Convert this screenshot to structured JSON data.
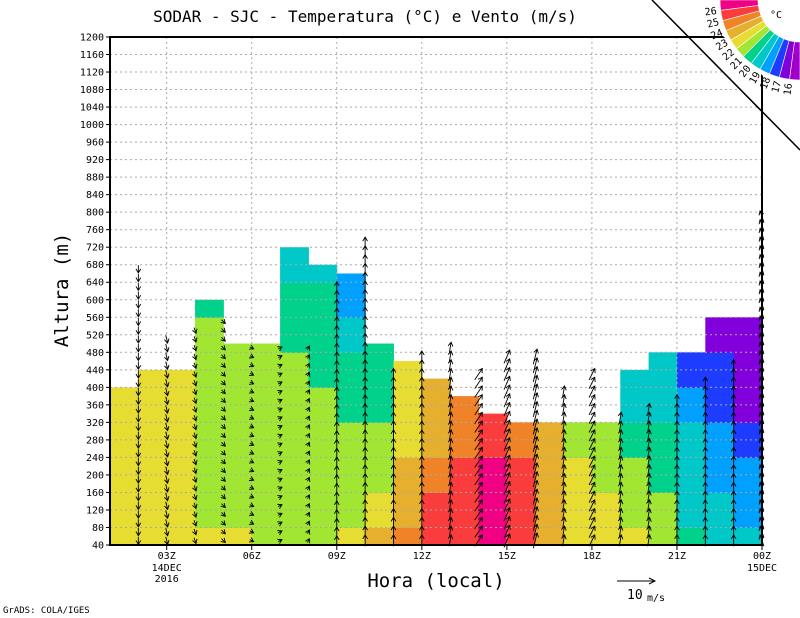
{
  "chart_data": {
    "type": "contour+vector",
    "title": "SODAR - SJC - Temperatura (°C) e Vento (m/s)",
    "xlabel": "Hora (local)",
    "ylabel": "Altura (m)",
    "footer": "GrADS: COLA/IGES",
    "xlim_hours": [
      1,
      24
    ],
    "ylim": [
      40,
      1200
    ],
    "yticks": [
      40,
      80,
      120,
      160,
      200,
      240,
      280,
      320,
      360,
      400,
      440,
      480,
      520,
      560,
      600,
      640,
      680,
      720,
      760,
      800,
      840,
      880,
      920,
      960,
      1000,
      1040,
      1080,
      1120,
      1160,
      1200
    ],
    "xticks": [
      {
        "hour": 3,
        "label": "03Z",
        "sub1": "14DEC",
        "sub2": "2016"
      },
      {
        "hour": 6,
        "label": "06Z"
      },
      {
        "hour": 9,
        "label": "09Z"
      },
      {
        "hour": 12,
        "label": "12Z"
      },
      {
        "hour": 15,
        "label": "15Z"
      },
      {
        "hour": 18,
        "label": "18Z"
      },
      {
        "hour": 21,
        "label": "21Z"
      },
      {
        "hour": 24,
        "label": "00Z",
        "sub1": "15DEC"
      }
    ],
    "grid": true,
    "colorbar": {
      "unit": "°C",
      "levels": [
        26,
        25,
        24,
        23,
        22,
        21,
        20,
        19,
        18,
        17,
        16
      ],
      "colors": [
        "#f00082",
        "#fa3c3c",
        "#f08228",
        "#e6af2d",
        "#e6dc32",
        "#a0e632",
        "#00d28c",
        "#00c8c8",
        "#00a0ff",
        "#1e3cff",
        "#8200dc",
        "#a000c8"
      ]
    },
    "temperature_levels_m": [
      40,
      120,
      200,
      280,
      360,
      440,
      520,
      600,
      680
    ],
    "temperature_columns": [
      {
        "hour": 1,
        "top": 400,
        "t": [
          22.5,
          22.5,
          22.5,
          22.5,
          22.5
        ]
      },
      {
        "hour": 2,
        "top": 440,
        "t": [
          22.5,
          22.5,
          22.5,
          22.5,
          22.5,
          22.5
        ]
      },
      {
        "hour": 3,
        "top": 440,
        "t": [
          22.5,
          22.5,
          22.5,
          22.5,
          22.5,
          22.5
        ]
      },
      {
        "hour": 4,
        "top": 600,
        "t": [
          22.5,
          21.5,
          21.5,
          21.5,
          21.5,
          21.5,
          21.5,
          20.5
        ]
      },
      {
        "hour": 5,
        "top": 500,
        "t": [
          22.5,
          21.5,
          21.5,
          21.5,
          21.5,
          21.5,
          21.5
        ]
      },
      {
        "hour": 6,
        "top": 500,
        "t": [
          21.5,
          21.5,
          21.5,
          21.5,
          21.5,
          21.5,
          21.5
        ]
      },
      {
        "hour": 7,
        "top": 720,
        "t": [
          21.5,
          21.5,
          21.5,
          21.5,
          21.5,
          21.5,
          20.5,
          20.5,
          19.5
        ]
      },
      {
        "hour": 8,
        "top": 680,
        "t": [
          21.5,
          21.5,
          21.5,
          21.5,
          21.5,
          20.5,
          20.5,
          20.5,
          19.5
        ]
      },
      {
        "hour": 9,
        "top": 660,
        "t": [
          22.5,
          21.5,
          21.5,
          21.5,
          20.5,
          20.5,
          19.5,
          18.5,
          18.5
        ]
      },
      {
        "hour": 10,
        "top": 500,
        "t": [
          23.5,
          22.5,
          21.5,
          21.5,
          20.5,
          20.5,
          20.5
        ]
      },
      {
        "hour": 11,
        "top": 460,
        "t": [
          24.5,
          23.5,
          23.5,
          22.5,
          22.5,
          22.5
        ]
      },
      {
        "hour": 12,
        "top": 420,
        "t": [
          25.5,
          25.5,
          24.5,
          23.5,
          23.5,
          23.5
        ]
      },
      {
        "hour": 13,
        "top": 380,
        "t": [
          25.5,
          25.5,
          25.5,
          24.5,
          24.5
        ]
      },
      {
        "hour": 14,
        "top": 340,
        "t": [
          26.5,
          26.5,
          26.5,
          25.5,
          25.5
        ]
      },
      {
        "hour": 15,
        "top": 320,
        "t": [
          25.5,
          25.5,
          25.5,
          24.5
        ]
      },
      {
        "hour": 16,
        "top": 320,
        "t": [
          23.5,
          23.5,
          23.5,
          23.5
        ]
      },
      {
        "hour": 17,
        "top": 320,
        "t": [
          22.5,
          22.5,
          22.5,
          21.5
        ]
      },
      {
        "hour": 18,
        "top": 320,
        "t": [
          22.5,
          22.5,
          21.5,
          21.5
        ]
      },
      {
        "hour": 19,
        "top": 440,
        "t": [
          22.5,
          21.5,
          21.5,
          20.5,
          19.5,
          19.5
        ]
      },
      {
        "hour": 20,
        "top": 480,
        "t": [
          21.5,
          21.5,
          20.5,
          20.5,
          19.5,
          19.5
        ]
      },
      {
        "hour": 21,
        "top": 480,
        "t": [
          20.5,
          19.5,
          19.5,
          19.5,
          18.5,
          17.5
        ]
      },
      {
        "hour": 22,
        "top": 560,
        "t": [
          19.5,
          19.5,
          18.5,
          18.5,
          17.5,
          17.5,
          16.5
        ]
      },
      {
        "hour": 23,
        "top": 560,
        "t": [
          19.5,
          18.5,
          18.5,
          17.5,
          16.5,
          16.5,
          16.5
        ]
      }
    ],
    "wind_reference": {
      "value": 10,
      "label": "10",
      "unit": "m/s"
    },
    "winds": [
      {
        "hour": 2,
        "u": 0,
        "v": -2,
        "top": 680
      },
      {
        "hour": 3,
        "u": 0.5,
        "v": -2,
        "top": 520
      },
      {
        "hour": 4,
        "u": 0.5,
        "v": -1.5,
        "top": 540
      },
      {
        "hour": 5,
        "u": 1,
        "v": -1,
        "top": 560
      },
      {
        "hour": 6,
        "u": 1,
        "v": -0.5,
        "top": 500
      },
      {
        "hour": 7,
        "u": 1,
        "v": 0.5,
        "top": 500
      },
      {
        "hour": 8,
        "u": 0.5,
        "v": 1,
        "top": 500
      },
      {
        "hour": 9,
        "u": 0,
        "v": 2.5,
        "top": 640
      },
      {
        "hour": 10,
        "u": 0,
        "v": 3,
        "top": 740
      },
      {
        "hour": 11,
        "u": 0,
        "v": 3,
        "top": 440
      },
      {
        "hour": 12,
        "u": 0,
        "v": 3,
        "top": 480
      },
      {
        "hour": 13,
        "u": 0.5,
        "v": 3,
        "top": 500
      },
      {
        "hour": 14,
        "u": 2,
        "v": 3,
        "top": 440
      },
      {
        "hour": 15,
        "u": 1.5,
        "v": 3.5,
        "top": 480
      },
      {
        "hour": 16,
        "u": 1,
        "v": 4,
        "top": 480
      },
      {
        "hour": 17,
        "u": 0.5,
        "v": 3,
        "top": 400
      },
      {
        "hour": 18,
        "u": 1.5,
        "v": 3,
        "top": 440
      },
      {
        "hour": 19,
        "u": 0.5,
        "v": 3,
        "top": 340
      },
      {
        "hour": 20,
        "u": 0.5,
        "v": 3,
        "top": 360
      },
      {
        "hour": 21,
        "u": 0,
        "v": 3,
        "top": 380
      },
      {
        "hour": 22,
        "u": 0,
        "v": 3,
        "top": 420
      },
      {
        "hour": 23,
        "u": 0,
        "v": 3,
        "top": 460
      },
      {
        "hour": 24,
        "u": -1,
        "v": 3,
        "top": 800
      }
    ]
  }
}
